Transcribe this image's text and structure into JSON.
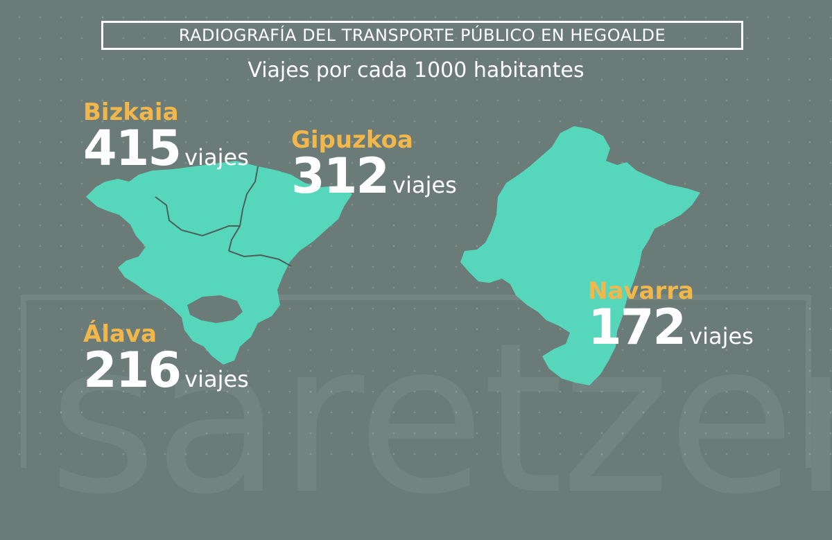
{
  "header": {
    "title": "RADIOGRAFÍA DEL TRANSPORTE PÚBLICO EN HEGOALDE",
    "subtitle": "Viajes por cada 1000 habitantes"
  },
  "regions": {
    "bizkaia": {
      "name": "Bizkaia",
      "value": "415",
      "unit": "viajes"
    },
    "gipuzkoa": {
      "name": "Gipuzkoa",
      "value": "312",
      "unit": "viajes"
    },
    "alava": {
      "name": "Álava",
      "value": "216",
      "unit": "viajes"
    },
    "navarra": {
      "name": "Navarra",
      "value": "172",
      "unit": "viajes"
    }
  },
  "watermark": "saretzen",
  "colors": {
    "background": "#6b7c78",
    "land": "#56d6bb",
    "region_name": "#f2b74b",
    "text": "#ffffff"
  }
}
